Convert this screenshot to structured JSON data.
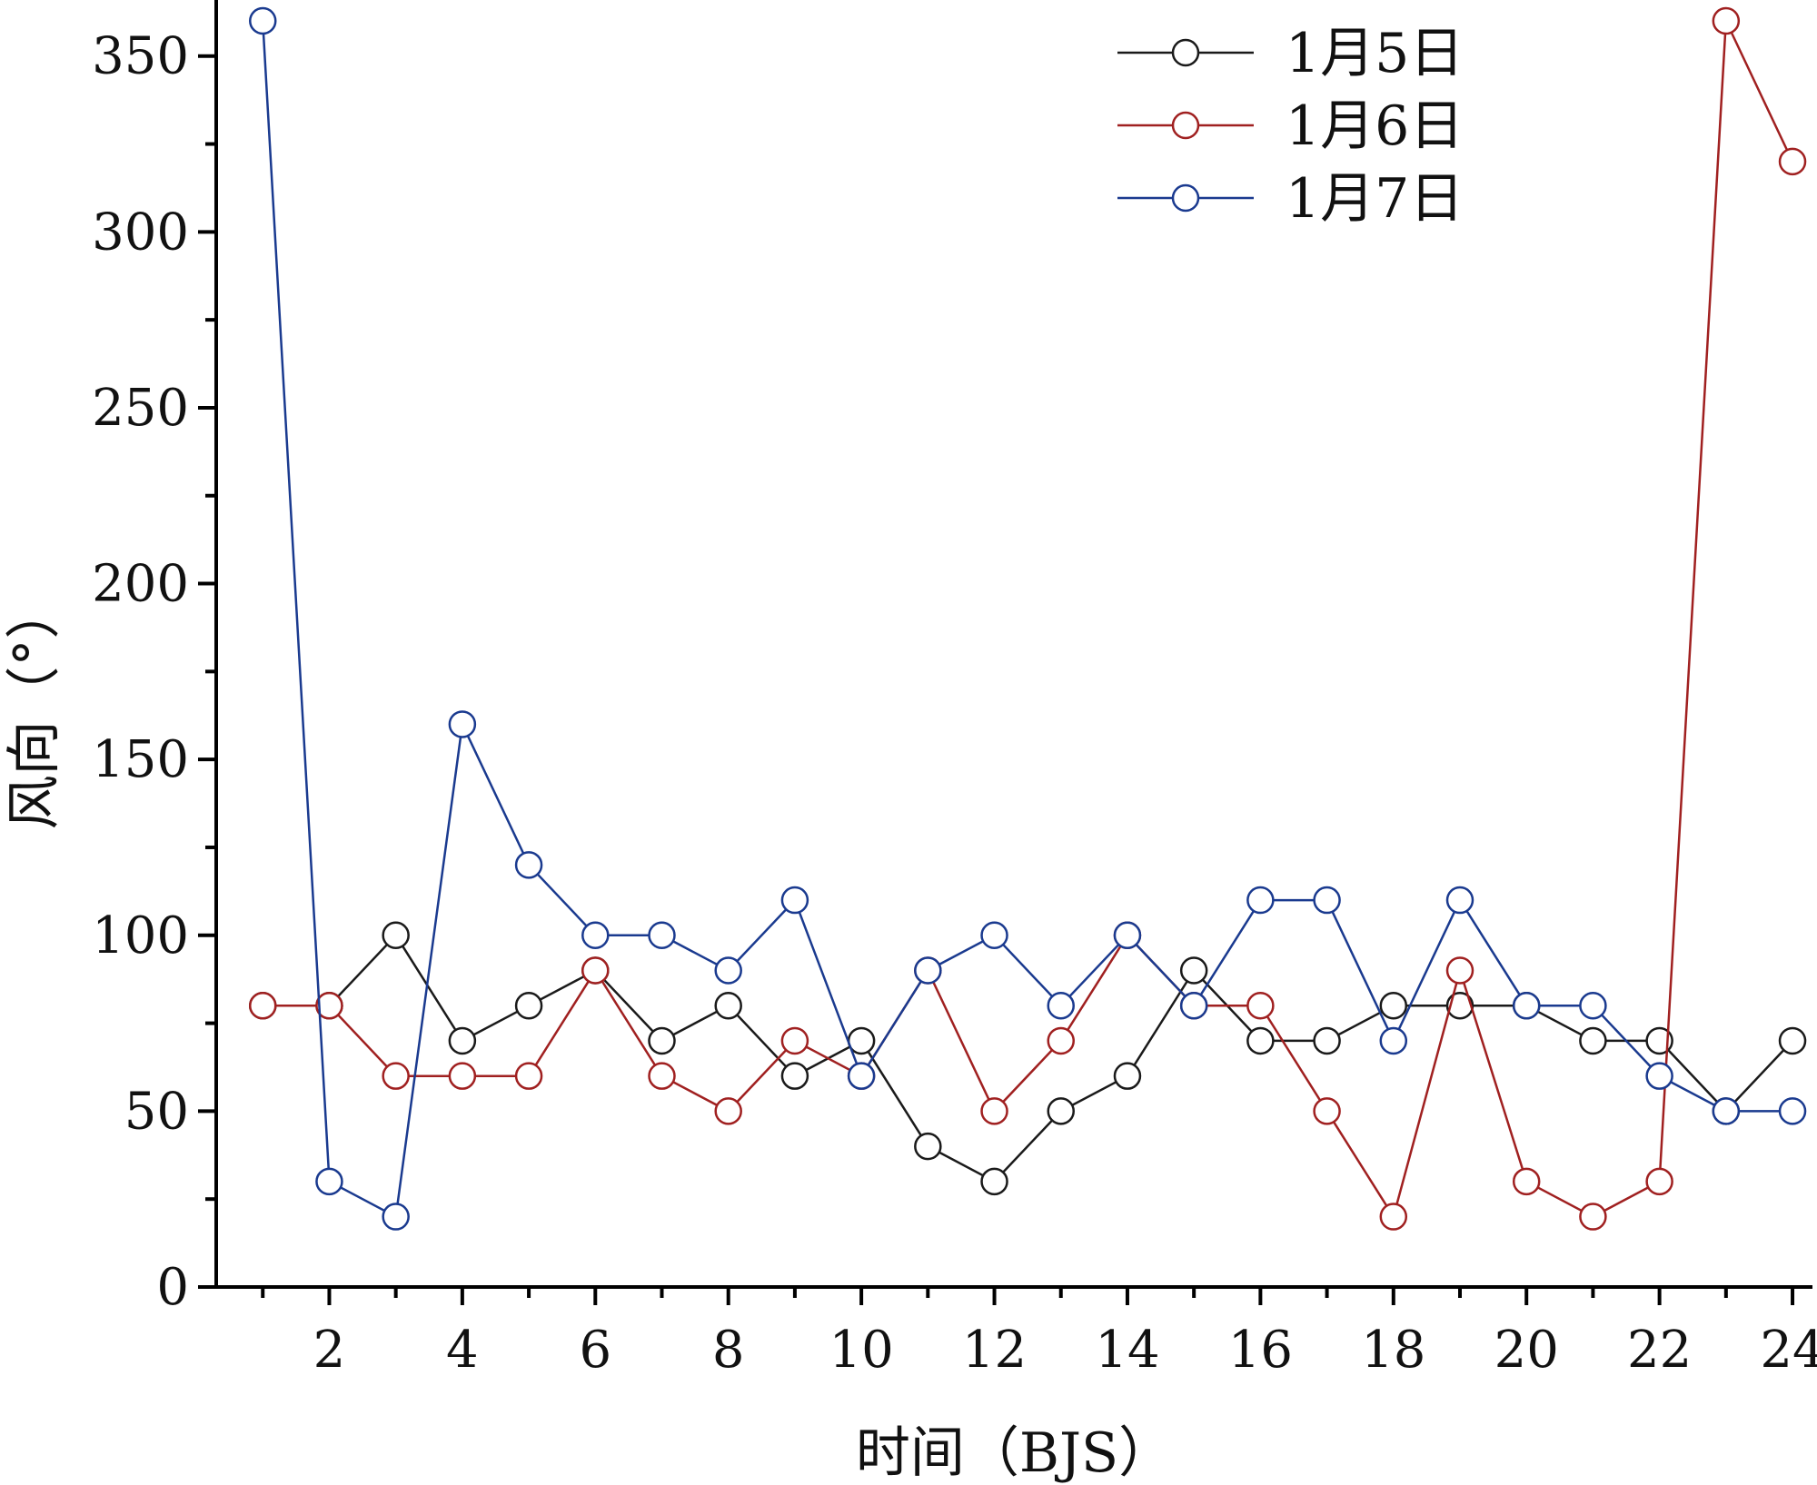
{
  "chart_data": {
    "type": "line",
    "title": "",
    "xlabel": "时间（BJS）",
    "ylabel": "风向（°）",
    "xlim": [
      0.3,
      24.3
    ],
    "ylim": [
      0,
      360
    ],
    "grid": false,
    "legend_position": "top-right",
    "x_ticks": [
      2,
      4,
      6,
      8,
      10,
      12,
      14,
      16,
      18,
      20,
      22,
      24
    ],
    "x_tick_labels": [
      "2",
      "4",
      "6",
      "8",
      "10",
      "12",
      "14",
      "16",
      "18",
      "20",
      "22",
      "24"
    ],
    "y_ticks": [
      0,
      50,
      100,
      150,
      200,
      250,
      300,
      350
    ],
    "y_tick_labels": [
      "0",
      "50",
      "100",
      "150",
      "200",
      "250",
      "300",
      "350"
    ],
    "x": [
      1,
      2,
      3,
      4,
      5,
      6,
      7,
      8,
      9,
      10,
      11,
      12,
      13,
      14,
      15,
      16,
      17,
      18,
      19,
      20,
      21,
      22,
      23,
      24
    ],
    "series": [
      {
        "name": "1月5日",
        "color": "#1a1a1a",
        "values": [
          80,
          80,
          100,
          70,
          80,
          90,
          70,
          80,
          60,
          70,
          40,
          30,
          50,
          60,
          90,
          70,
          70,
          80,
          80,
          80,
          70,
          70,
          50,
          70
        ]
      },
      {
        "name": "1月6日",
        "color": "#a02020",
        "values": [
          80,
          80,
          60,
          60,
          60,
          90,
          60,
          50,
          70,
          60,
          90,
          50,
          70,
          100,
          80,
          80,
          50,
          20,
          90,
          30,
          20,
          30,
          360,
          320
        ]
      },
      {
        "name": "1月7日",
        "color": "#1a3a8f",
        "values": [
          360,
          30,
          20,
          160,
          120,
          100,
          100,
          90,
          110,
          60,
          90,
          100,
          80,
          100,
          80,
          110,
          110,
          70,
          110,
          80,
          80,
          60,
          50,
          50
        ]
      }
    ]
  }
}
